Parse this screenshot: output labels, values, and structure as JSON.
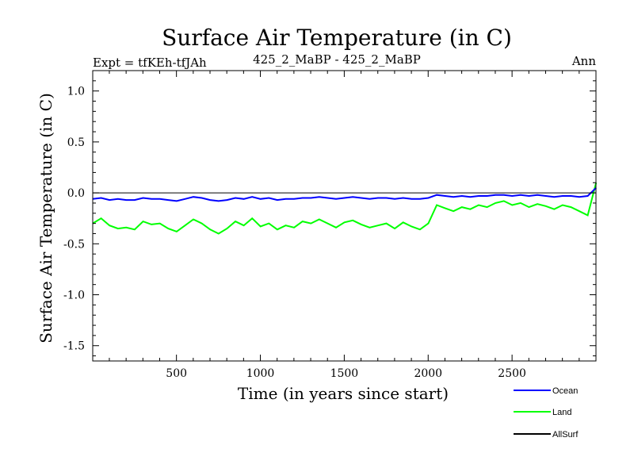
{
  "chart_data": {
    "type": "line",
    "title": "Surface Air Temperature (in C)",
    "subtitle_left": "Expt = tfKEh-tfJAh",
    "subtitle_center": "425_2_MaBP - 425_2_MaBP",
    "subtitle_right": "Ann",
    "xlabel": "Time (in years since start)",
    "ylabel": "Surface Air Temperature (in C)",
    "xlim": [
      1,
      3000
    ],
    "ylim": [
      -1.65,
      1.2
    ],
    "xticks": [
      500,
      1000,
      1500,
      2000,
      2500
    ],
    "yticks": [
      1.0,
      0.5,
      0.0,
      -0.5,
      -1.0,
      -1.5
    ],
    "ytick_labels": [
      "1.0",
      "0.5",
      "0.0",
      "-0.5",
      "-1.0",
      "-1.5"
    ],
    "grid": false,
    "legend_position": "bottom-right",
    "series": [
      {
        "name": "Ocean",
        "color": "#0000ff",
        "x_start": 1,
        "x_step": 50,
        "values": [
          -0.06,
          -0.05,
          -0.07,
          -0.06,
          -0.07,
          -0.07,
          -0.05,
          -0.06,
          -0.06,
          -0.07,
          -0.08,
          -0.06,
          -0.04,
          -0.05,
          -0.07,
          -0.08,
          -0.07,
          -0.05,
          -0.06,
          -0.04,
          -0.06,
          -0.05,
          -0.07,
          -0.06,
          -0.06,
          -0.05,
          -0.05,
          -0.04,
          -0.05,
          -0.06,
          -0.05,
          -0.04,
          -0.05,
          -0.06,
          -0.05,
          -0.05,
          -0.06,
          -0.05,
          -0.06,
          -0.06,
          -0.05,
          -0.02,
          -0.03,
          -0.04,
          -0.03,
          -0.04,
          -0.03,
          -0.03,
          -0.02,
          -0.02,
          -0.03,
          -0.02,
          -0.03,
          -0.02,
          -0.03,
          -0.04,
          -0.03,
          -0.03,
          -0.04,
          -0.03,
          0.05
        ]
      },
      {
        "name": "Land",
        "color": "#00ff00",
        "x_start": 1,
        "x_step": 50,
        "values": [
          -0.3,
          -0.25,
          -0.32,
          -0.35,
          -0.34,
          -0.36,
          -0.28,
          -0.31,
          -0.3,
          -0.35,
          -0.38,
          -0.32,
          -0.26,
          -0.3,
          -0.36,
          -0.4,
          -0.35,
          -0.28,
          -0.32,
          -0.25,
          -0.33,
          -0.3,
          -0.36,
          -0.32,
          -0.34,
          -0.28,
          -0.3,
          -0.26,
          -0.3,
          -0.34,
          -0.29,
          -0.27,
          -0.31,
          -0.34,
          -0.32,
          -0.3,
          -0.35,
          -0.29,
          -0.33,
          -0.36,
          -0.3,
          -0.12,
          -0.15,
          -0.18,
          -0.14,
          -0.16,
          -0.12,
          -0.14,
          -0.1,
          -0.08,
          -0.12,
          -0.1,
          -0.14,
          -0.11,
          -0.13,
          -0.16,
          -0.12,
          -0.14,
          -0.18,
          -0.22,
          0.1
        ]
      },
      {
        "name": "AllSurf",
        "color": "#000000",
        "x_start": 1,
        "x_step": 50,
        "values": []
      }
    ]
  }
}
